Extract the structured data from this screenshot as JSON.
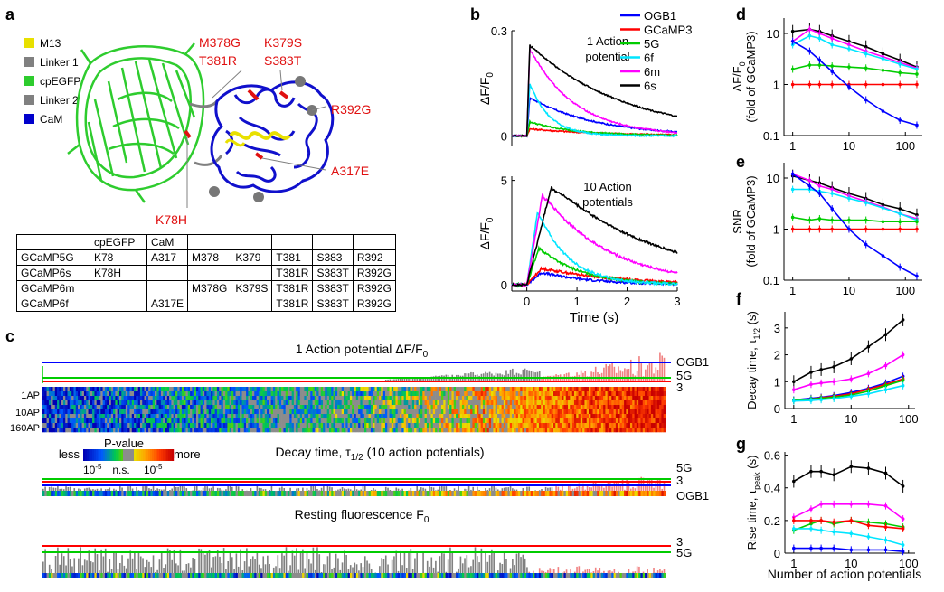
{
  "panel_labels": {
    "a": "a",
    "b": "b",
    "c": "c",
    "d": "d",
    "e": "e",
    "f": "f",
    "g": "g"
  },
  "legend_a": [
    {
      "label": "M13",
      "color": "#e8e000"
    },
    {
      "label": "Linker 1",
      "color": "#808080"
    },
    {
      "label": "cpEGFP",
      "color": "#2ecc2e"
    },
    {
      "label": "Linker 2",
      "color": "#808080"
    },
    {
      "label": "CaM",
      "color": "#0000cc"
    }
  ],
  "mutation_labels": [
    "M378G",
    "T381R",
    "K379S",
    "S383T",
    "R392G",
    "A317E",
    "K78H"
  ],
  "mutation_color": "#e01010",
  "table": {
    "header": [
      "",
      "cpEGFP",
      "CaM",
      "",
      "",
      "",
      "",
      ""
    ],
    "rows": [
      [
        "GCaMP5G",
        "K78",
        "A317",
        "M378",
        "K379",
        "T381",
        "S383",
        "R392"
      ],
      [
        "GCaMP6s",
        "K78H",
        "",
        "",
        "",
        "T381R",
        "S383T",
        "R392G"
      ],
      [
        "GCaMP6m",
        "",
        "",
        "M378G",
        "K379S",
        "T381R",
        "S383T",
        "R392G"
      ],
      [
        "GCaMP6f",
        "",
        "A317E",
        "",
        "",
        "T381R",
        "S383T",
        "R392G"
      ]
    ]
  },
  "panel_b": {
    "legend": [
      {
        "name": "OGB1",
        "color": "#0000ff"
      },
      {
        "name": "GCaMP3",
        "color": "#ff0000"
      },
      {
        "name": "5G",
        "color": "#00cc00"
      },
      {
        "name": "6f",
        "color": "#00e5ff"
      },
      {
        "name": "6m",
        "color": "#ff00ff"
      },
      {
        "name": "6s",
        "color": "#000000"
      }
    ],
    "top": {
      "annotation_line1": "1 Action",
      "annotation_line2": "potential",
      "ylabel": "ΔF/F",
      "ylabel_sub": "0",
      "yticks": [
        "0",
        "0.3"
      ]
    },
    "bottom": {
      "annotation_line1": "10 Action",
      "annotation_line2": "potentials",
      "ylabel": "ΔF/F",
      "ylabel_sub": "0",
      "yticks": [
        "0",
        "5"
      ],
      "xticks": [
        "0",
        "1",
        "2",
        "3"
      ],
      "xlabel": "Time (s)"
    }
  },
  "panel_c": {
    "title1": "1 Action potential ΔF/F",
    "title1_sub": "0",
    "right_labels1": [
      "OGB1",
      "5G",
      "3"
    ],
    "heatmap_rows": [
      "1AP",
      "10AP",
      "160AP"
    ],
    "pvalue": {
      "title": "P-value",
      "less": "less",
      "more": "more",
      "ticks": [
        "10",
        "n.s.",
        "10"
      ],
      "tick_sup": "-5"
    },
    "title2": "Decay time,  τ",
    "title2_sub": "1/2",
    "title2_suffix": " (10 action potentials)",
    "right_labels2": [
      "5G",
      "3",
      "OGB1"
    ],
    "title3": "Resting fluorescence F",
    "title3_sub": "0",
    "right_labels3": [
      "3",
      "5G"
    ]
  },
  "chart_data": [
    {
      "type": "line",
      "panel": "b-top",
      "x_range": [
        -0.3,
        3
      ],
      "ylim": [
        -0.03,
        0.3
      ],
      "series": [
        {
          "name": "OGB1",
          "peak": 0.11,
          "tau": 1.3
        },
        {
          "name": "GCaMP3",
          "peak": 0.02,
          "tau": 1.5
        },
        {
          "name": "5G",
          "peak": 0.04,
          "tau": 0.9
        },
        {
          "name": "6f",
          "peak": 0.15,
          "tau": 0.4
        },
        {
          "name": "6m",
          "peak": 0.25,
          "tau": 0.9
        },
        {
          "name": "6s",
          "peak": 0.26,
          "tau": 1.9
        }
      ]
    },
    {
      "type": "line",
      "panel": "b-bottom",
      "x_range": [
        -0.3,
        3
      ],
      "ylim": [
        -0.3,
        5.2
      ],
      "xticks": [
        0,
        1,
        2,
        3
      ],
      "series": [
        {
          "name": "OGB1",
          "peak": 0.6,
          "rise": 0.3,
          "tau": 1.0
        },
        {
          "name": "GCaMP3",
          "peak": 0.8,
          "rise": 0.3,
          "tau": 1.5
        },
        {
          "name": "5G",
          "peak": 1.8,
          "rise": 0.25,
          "tau": 0.8
        },
        {
          "name": "6f",
          "peak": 3.6,
          "rise": 0.22,
          "tau": 0.6
        },
        {
          "name": "6m",
          "peak": 4.4,
          "rise": 0.32,
          "tau": 1.3
        },
        {
          "name": "6s",
          "peak": 4.8,
          "rise": 0.5,
          "tau": 2.2
        }
      ]
    },
    {
      "type": "line",
      "panel": "d",
      "ylabel": "ΔF/F",
      "ylabel_sub": "0",
      "ylabel2": "(fold of GCaMP3)",
      "yscale": "log",
      "xscale": "log",
      "ylim": [
        0.1,
        20
      ],
      "xlim": [
        0.7,
        200
      ],
      "yticks": [
        "0.1",
        "1",
        "10"
      ],
      "xticks": [
        "1",
        "10",
        "100"
      ],
      "x": [
        1,
        2,
        3,
        5,
        10,
        20,
        40,
        80,
        160
      ],
      "series": [
        {
          "name": "6s",
          "values": [
            11,
            12,
            11,
            9,
            7,
            5.5,
            4,
            3,
            2.2
          ]
        },
        {
          "name": "6m",
          "values": [
            7,
            12,
            10,
            8,
            6,
            4.5,
            3.5,
            2.7,
            2.1
          ]
        },
        {
          "name": "6f",
          "values": [
            6,
            9,
            8,
            6,
            5,
            4,
            3.2,
            2.5,
            2
          ]
        },
        {
          "name": "5G",
          "values": [
            2,
            2.4,
            2.4,
            2.3,
            2.2,
            2.1,
            1.9,
            1.7,
            1.6
          ]
        },
        {
          "name": "GCaMP3",
          "values": [
            1,
            1,
            1,
            1,
            1,
            1,
            1,
            1,
            1
          ]
        },
        {
          "name": "OGB1",
          "values": [
            7,
            4.5,
            3,
            1.8,
            0.9,
            0.5,
            0.3,
            0.2,
            0.16
          ]
        }
      ]
    },
    {
      "type": "line",
      "panel": "e",
      "ylabel": "SNR",
      "ylabel2": "(fold of GCaMP3)",
      "yscale": "log",
      "xscale": "log",
      "ylim": [
        0.1,
        20
      ],
      "xlim": [
        0.7,
        200
      ],
      "yticks": [
        "0.1",
        "1",
        "10"
      ],
      "xticks": [
        "1",
        "10",
        "100"
      ],
      "x": [
        1,
        2,
        3,
        5,
        10,
        20,
        40,
        80,
        160
      ],
      "series": [
        {
          "name": "6s",
          "values": [
            11,
            9,
            8,
            6.5,
            5,
            4,
            3,
            2.5,
            1.9
          ]
        },
        {
          "name": "6m",
          "values": [
            12,
            9,
            7,
            6,
            4.5,
            3.5,
            2.7,
            2,
            1.6
          ]
        },
        {
          "name": "6f",
          "values": [
            6,
            6,
            5.5,
            5,
            4,
            3.3,
            2.6,
            2,
            1.5
          ]
        },
        {
          "name": "5G",
          "values": [
            1.7,
            1.5,
            1.6,
            1.5,
            1.5,
            1.5,
            1.4,
            1.4,
            1.4
          ]
        },
        {
          "name": "GCaMP3",
          "values": [
            1,
            1,
            1,
            1,
            1,
            1,
            1,
            1,
            1
          ]
        },
        {
          "name": "OGB1",
          "values": [
            12,
            7,
            5,
            2.5,
            1,
            0.5,
            0.3,
            0.18,
            0.12
          ]
        }
      ]
    },
    {
      "type": "line",
      "panel": "f",
      "ylabel": "Decay time, τ",
      "ylabel_sub": "1/2",
      "ylabel_suffix": " (s)",
      "xscale": "log",
      "ylim": [
        0,
        3.6
      ],
      "xlim": [
        0.7,
        130
      ],
      "yticks": [
        "0",
        "1",
        "2",
        "3"
      ],
      "xticks": [
        "1",
        "10",
        "100"
      ],
      "x": [
        1,
        2,
        3,
        5,
        10,
        20,
        40,
        80
      ],
      "series": [
        {
          "name": "6s",
          "values": [
            1.0,
            1.35,
            1.45,
            1.55,
            1.85,
            2.3,
            2.75,
            3.3
          ]
        },
        {
          "name": "6m",
          "values": [
            0.7,
            0.9,
            0.95,
            1.0,
            1.1,
            1.3,
            1.6,
            2.0
          ]
        },
        {
          "name": "OGB1",
          "values": [
            0.32,
            0.38,
            0.42,
            0.48,
            0.6,
            0.75,
            0.95,
            1.2
          ]
        },
        {
          "name": "GCaMP3",
          "values": [
            0.3,
            0.35,
            0.4,
            0.45,
            0.55,
            0.72,
            0.9,
            1.1
          ]
        },
        {
          "name": "5G",
          "values": [
            0.3,
            0.35,
            0.38,
            0.42,
            0.5,
            0.65,
            0.85,
            1.05
          ]
        },
        {
          "name": "6f",
          "values": [
            0.28,
            0.3,
            0.33,
            0.37,
            0.45,
            0.55,
            0.7,
            0.85
          ]
        }
      ]
    },
    {
      "type": "line",
      "panel": "g",
      "ylabel": "Rise time, τ",
      "ylabel_sub": "peak",
      "ylabel_suffix": " (s)",
      "xlabel": "Number of action potentials",
      "xscale": "log",
      "ylim": [
        0,
        0.62
      ],
      "xlim": [
        0.7,
        130
      ],
      "yticks": [
        "0",
        "0.2",
        "0.4",
        "0.6"
      ],
      "xticks": [
        "1",
        "10",
        "100"
      ],
      "x": [
        1,
        2,
        3,
        5,
        10,
        20,
        40,
        80
      ],
      "series": [
        {
          "name": "6s",
          "values": [
            0.44,
            0.5,
            0.5,
            0.48,
            0.53,
            0.52,
            0.49,
            0.41
          ]
        },
        {
          "name": "6m",
          "values": [
            0.22,
            0.27,
            0.3,
            0.3,
            0.3,
            0.3,
            0.29,
            0.21
          ]
        },
        {
          "name": "5G",
          "values": [
            0.14,
            0.18,
            0.2,
            0.18,
            0.2,
            0.19,
            0.18,
            0.16
          ]
        },
        {
          "name": "GCaMP3",
          "values": [
            0.2,
            0.2,
            0.2,
            0.19,
            0.2,
            0.17,
            0.16,
            0.15
          ]
        },
        {
          "name": "6f",
          "values": [
            0.15,
            0.15,
            0.14,
            0.13,
            0.12,
            0.1,
            0.08,
            0.05
          ]
        },
        {
          "name": "OGB1",
          "values": [
            0.03,
            0.03,
            0.03,
            0.03,
            0.02,
            0.02,
            0.02,
            0.01
          ]
        }
      ]
    }
  ]
}
